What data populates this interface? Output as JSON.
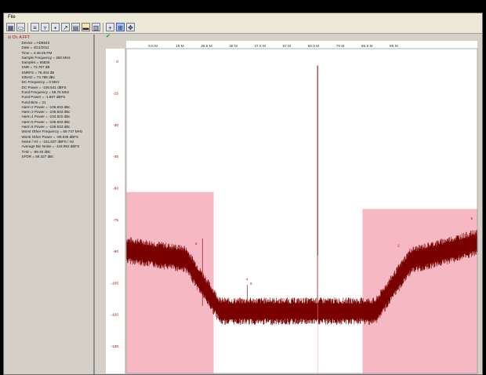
{
  "menu": {
    "items": [
      "File"
    ]
  },
  "toolbar": {
    "buttons": [
      {
        "icon": "grid-icon"
      },
      {
        "icon": "window-icon"
      },
      {
        "icon": "list-icon"
      },
      {
        "icon": "filter-icon"
      },
      {
        "icon": "save-icon"
      },
      {
        "icon": "export-icon"
      },
      {
        "icon": "table-icon"
      },
      {
        "icon": "folder-icon"
      },
      {
        "icon": "chart-icon"
      },
      {
        "icon": "crosshair-icon"
      },
      {
        "icon": "zoom-box-icon"
      },
      {
        "icon": "pan-icon"
      }
    ]
  },
  "tree": {
    "root": "Ch. A FFT",
    "items": [
      "Device = AD6643",
      "Date = 4/21/2011",
      "Time = 4:46:26 PM",
      "Sample Frequency = 250 MHz",
      "Samples = 65536",
      "SNR = 73.797 dB",
      "SNRFS = 76.404 dB",
      "SINAD = 73.785 dBc",
      "DC Frequency = 0 MHz",
      "DC Power = -106.541 dBFS",
      "Fund Frequency = 59.76 MHz",
      "Fund Power = -1.807 dBFS",
      "Fund Bins = 21",
      "Harm 2 Power = -106.933 dBc",
      "Harm 3 Power = -106.933 dBc",
      "Harm 4 Power = -104.922 dBc",
      "Harm 5 Power = -106.933 dBc",
      "Harm 6 Power = -106.933 dBc",
      "Worst Other Frequency = 59.747 MHz",
      "Worst Other Power = -89.935 dBFS",
      "Noise / Hz = -151.837 dBFS / Hz",
      "Average Bin Noise = -119.992 dBFS",
      "THD = -99.46 dBc",
      "SFDR = 88.327 dBc"
    ]
  },
  "chart_data": {
    "type": "line",
    "x_ticks": [
      "9.5 M",
      "19 M",
      "28.5 M",
      "38 M",
      "47.5 M",
      "57 M",
      "66.5 M",
      "76 M",
      "85.5 M",
      "95 M"
    ],
    "y_ticks": [
      "0",
      "-15",
      "-30",
      "-45",
      "-60",
      "-75",
      "-90",
      "-105",
      "-120",
      "-135"
    ],
    "xlim": [
      0,
      100
    ],
    "ylim": [
      -148,
      6
    ],
    "harmonic_markers": [
      {
        "label": "3",
        "x": 19.6,
        "y": -87
      },
      {
        "label": "4",
        "x": 34.1,
        "y": -104
      },
      {
        "label": "6",
        "x": 35.3,
        "y": -106
      },
      {
        "label": "2",
        "x": 77.3,
        "y": -88
      },
      {
        "label": "5",
        "x": 98.1,
        "y": -75
      }
    ],
    "shaded_regions": [
      {
        "x0": 0,
        "x1": 24.9,
        "top": -62
      },
      {
        "x0": 67.3,
        "x1": 100,
        "top": -70
      }
    ],
    "colors": {
      "trace": "#7a0000",
      "shade": "#f6b8c2",
      "tick": "#b00000"
    }
  }
}
